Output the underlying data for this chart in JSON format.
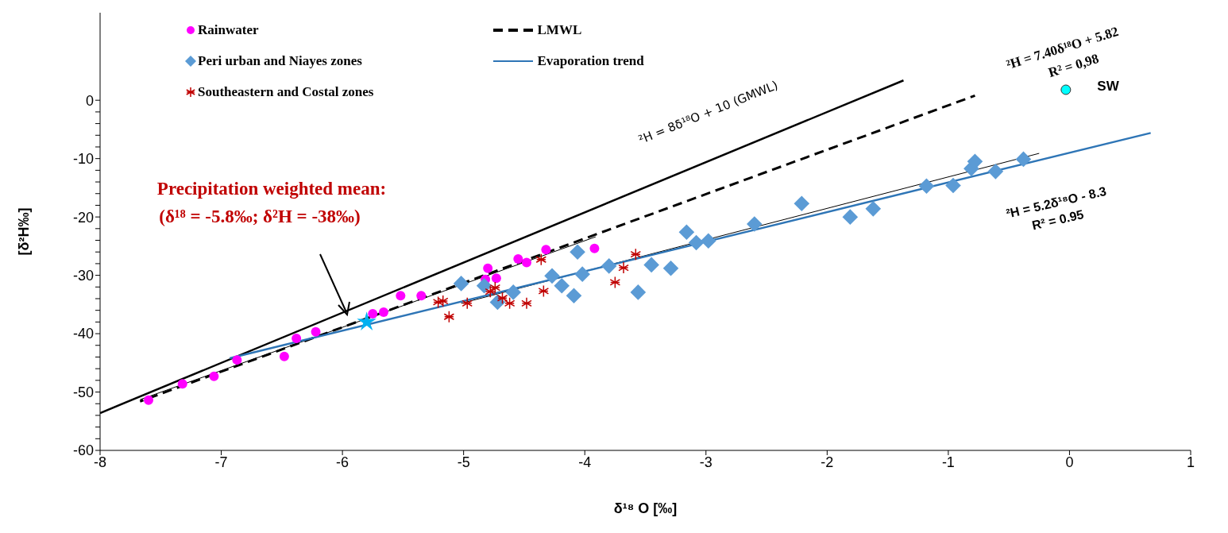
{
  "chart_data": {
    "type": "scatter",
    "xlabel": "δ¹⁸ O [‰]",
    "ylabel": "[δ²H‰]",
    "xlim": [
      -8,
      1
    ],
    "xticks": [
      -8,
      -7,
      -6,
      -5,
      -4,
      -3,
      -2,
      -1,
      0,
      1
    ],
    "ylim": [
      -60,
      15
    ],
    "yticks": [
      -60,
      {
        "value": -58,
        "label": null
      },
      {
        "value": -56,
        "label": null
      },
      {
        "value": -54,
        "label": null
      },
      {
        "value": -52,
        "label": null
      },
      -50,
      {
        "value": -48,
        "label": null
      },
      {
        "value": -46,
        "label": null
      },
      {
        "value": -44,
        "label": null
      },
      {
        "value": -42,
        "label": null
      },
      -40,
      {
        "value": -38,
        "label": null
      },
      {
        "value": -36,
        "label": null
      },
      {
        "value": -34,
        "label": null
      },
      {
        "value": -32,
        "label": null
      },
      -30,
      {
        "value": -28,
        "label": null
      },
      {
        "value": -26,
        "label": null
      },
      {
        "value": -24,
        "label": null
      },
      {
        "value": -22,
        "label": null
      },
      -20,
      {
        "value": -18,
        "label": null
      },
      {
        "value": -16,
        "label": null
      },
      {
        "value": -14,
        "label": null
      },
      {
        "value": -12,
        "label": null
      },
      -10,
      {
        "value": -8,
        "label": null
      },
      {
        "value": -6,
        "label": null
      },
      {
        "value": -4,
        "label": null
      },
      {
        "value": -2,
        "label": null
      },
      0
    ],
    "grid": false,
    "legend": "top",
    "series": [
      {
        "type": "scatter",
        "name": "Rainwater",
        "color": "#ff00ff",
        "marker": "circle",
        "x": [
          -7.6,
          -7.32,
          -7.06,
          -6.87,
          -6.48,
          -6.38,
          -6.22,
          -5.75,
          -5.66,
          -5.52,
          -5.35,
          -4.8,
          -4.82,
          -4.73,
          -4.55,
          -4.48,
          -4.32,
          -3.92
        ],
        "values": [
          -51.4,
          -48.6,
          -47.3,
          -44.5,
          -43.9,
          -40.8,
          -39.7,
          -36.6,
          -36.3,
          -33.5,
          -33.5,
          -28.8,
          -30.7,
          -30.5,
          -27.2,
          -27.8,
          -25.6,
          -25.4
        ]
      },
      {
        "type": "scatter",
        "name": "Peri urban and Niayes zones",
        "color": "#5b9bd5",
        "marker": "diamond",
        "x": [
          -5.02,
          -4.83,
          -4.72,
          -4.59,
          -4.27,
          -4.19,
          -4.09,
          -4.06,
          -4.02,
          -3.8,
          -3.56,
          -3.45,
          -3.29,
          -3.16,
          -3.08,
          -2.98,
          -2.6,
          -2.21,
          -1.81,
          -1.62,
          -1.18,
          -0.96,
          -0.81,
          -0.78,
          -0.61,
          -0.38
        ],
        "values": [
          -31.4,
          -31.8,
          -34.6,
          -32.9,
          -30.1,
          -31.8,
          -33.5,
          -26,
          -29.8,
          -28.4,
          -32.9,
          -28.2,
          -28.8,
          -22.6,
          -24.4,
          -24.1,
          -21.2,
          -17.7,
          -20,
          -18.6,
          -14.7,
          -14.6,
          -11.7,
          -10.5,
          -12.2,
          -10.1
        ]
      },
      {
        "type": "scatter",
        "name": "Southeastern and Costal zones",
        "color": "#c00000",
        "marker": "cross",
        "x": [
          -5.21,
          -5.17,
          -5.12,
          -4.97,
          -4.78,
          -4.74,
          -4.68,
          -4.62,
          -4.48,
          -4.34,
          -4.36,
          -3.75,
          -3.68,
          -3.58
        ],
        "values": [
          -34.6,
          -34.4,
          -37.1,
          -34.8,
          -32.8,
          -32.1,
          -33.9,
          -34.8,
          -34.8,
          -32.7,
          -27.3,
          -31.2,
          -28.7,
          -26.4
        ]
      },
      {
        "type": "line",
        "color": "#000000",
        "line_style": "solid",
        "x": [
          -8,
          -1.37
        ],
        "values": [
          -53.6,
          3.4
        ]
      },
      {
        "type": "line",
        "name": "LMWL",
        "color": "#000000",
        "line_style": "dashed",
        "x": [
          -7.67,
          -0.78
        ],
        "values": [
          -51.6,
          0.8
        ]
      },
      {
        "type": "line",
        "color": "#000000",
        "line_style": "solid",
        "x": [
          -7.67,
          -3.91
        ],
        "values": [
          -51.3,
          -23.4
        ]
      },
      {
        "type": "line",
        "color": "#000000",
        "line_style": "solid",
        "x": [
          -5.02,
          -0.25
        ],
        "values": [
          -34.8,
          -9.1
        ]
      },
      {
        "type": "line",
        "name": "Evaporation trend",
        "color": "#2e75b6",
        "line_style": "solid",
        "x": [
          -6.93,
          0.67
        ],
        "values": [
          -44.2,
          -5.6
        ]
      },
      {
        "type": "scatter",
        "color": "#00b0f0",
        "marker": "star",
        "x": [
          -5.8
        ],
        "values": [
          -38
        ]
      },
      {
        "type": "scatter",
        "color": "#00ffff",
        "marker": "circle",
        "x": [
          -0.03
        ],
        "values": [
          1.8
        ]
      }
    ],
    "annotations": [
      "²H = 8δ¹⁸O + 10 (GMWL)",
      "Precipitation weighted mean:",
      "(δ¹⁸ = -5.8‰; δ²H = -38‰)",
      "²H = 7.40δ¹⁸O + 5.82",
      "R² = 0,98",
      "SW",
      "²H = 5.2δ¹⁸O - 8.3",
      "R² = 0.95"
    ]
  }
}
